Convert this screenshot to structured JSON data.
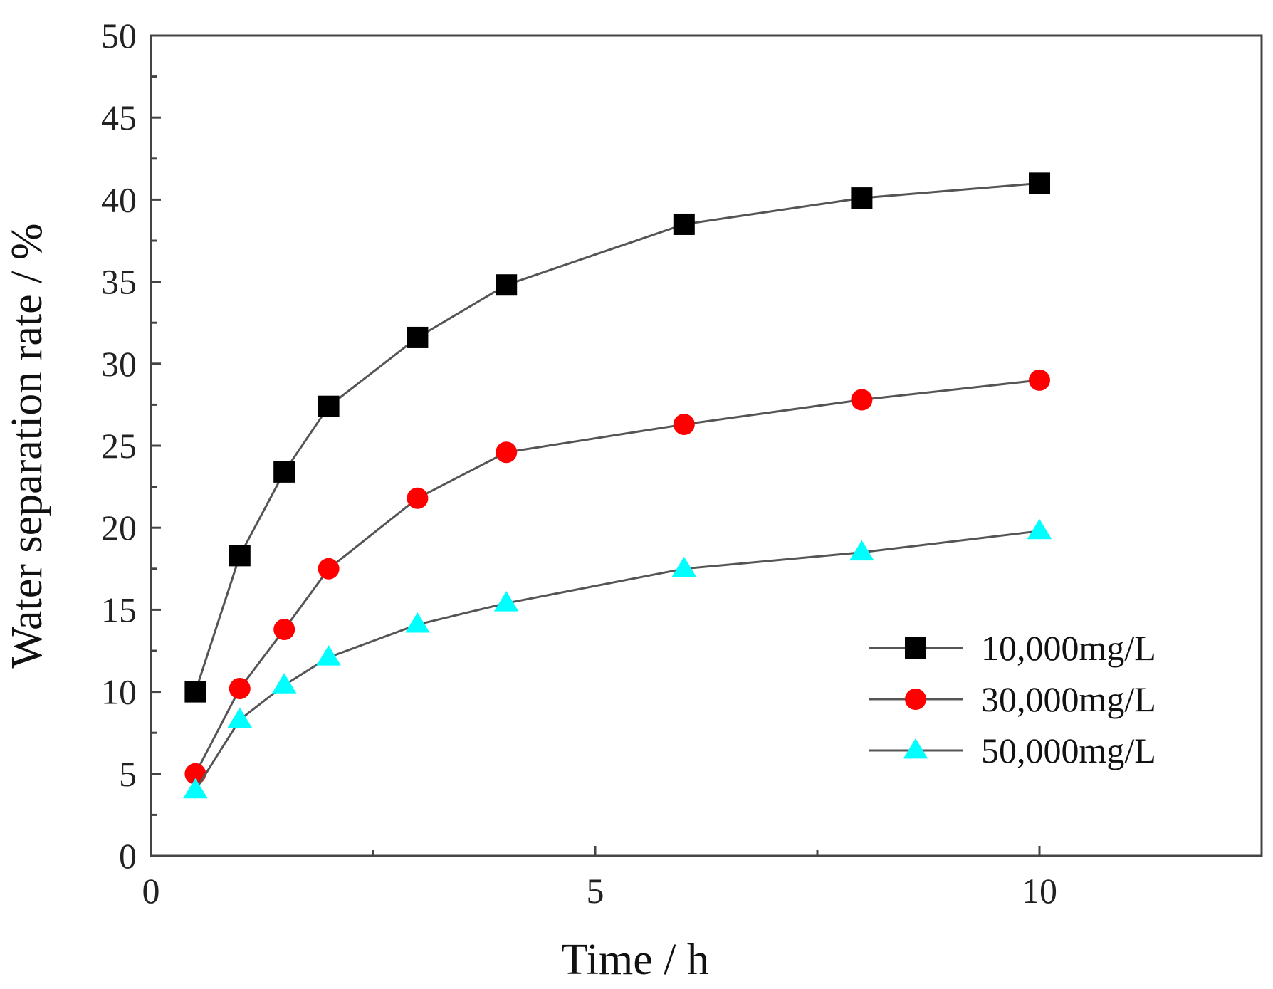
{
  "chart_data": {
    "type": "line",
    "title": "",
    "xlabel": "Time / h",
    "ylabel": "Water separation rate / %",
    "xlim": [
      0,
      12.5
    ],
    "ylim": [
      0,
      50
    ],
    "x_ticks": [
      0,
      5,
      10
    ],
    "x_tick_labels": [
      "0",
      "5",
      "10"
    ],
    "x_minor_ticks": [
      2.5,
      7.5
    ],
    "y_ticks": [
      0,
      5,
      10,
      15,
      20,
      25,
      30,
      35,
      40,
      45,
      50
    ],
    "y_tick_labels": [
      "0",
      "5",
      "10",
      "15",
      "20",
      "25",
      "30",
      "35",
      "40",
      "45",
      "50"
    ],
    "grid": false,
    "legend_position": "lower-right",
    "series": [
      {
        "name": "10,000mg/L",
        "marker": "square",
        "color": "#000000",
        "x": [
          0.5,
          1,
          1.5,
          2,
          3,
          4,
          6,
          8,
          10
        ],
        "values": [
          10.0,
          18.3,
          23.4,
          27.4,
          31.6,
          34.8,
          38.5,
          40.1,
          41.0
        ]
      },
      {
        "name": "30,000mg/L",
        "marker": "circle",
        "color": "#ff0000",
        "x": [
          0.5,
          1,
          1.5,
          2,
          3,
          4,
          6,
          8,
          10
        ],
        "values": [
          5.0,
          10.2,
          13.8,
          17.5,
          21.8,
          24.6,
          26.3,
          27.8,
          29.0
        ]
      },
      {
        "name": "50,000mg/L",
        "marker": "triangle",
        "color": "#00ffff",
        "x": [
          0.5,
          1,
          1.5,
          2,
          3,
          4,
          6,
          8,
          10
        ],
        "values": [
          4.0,
          8.3,
          10.4,
          12.1,
          14.1,
          15.4,
          17.5,
          18.5,
          19.8
        ]
      }
    ]
  }
}
